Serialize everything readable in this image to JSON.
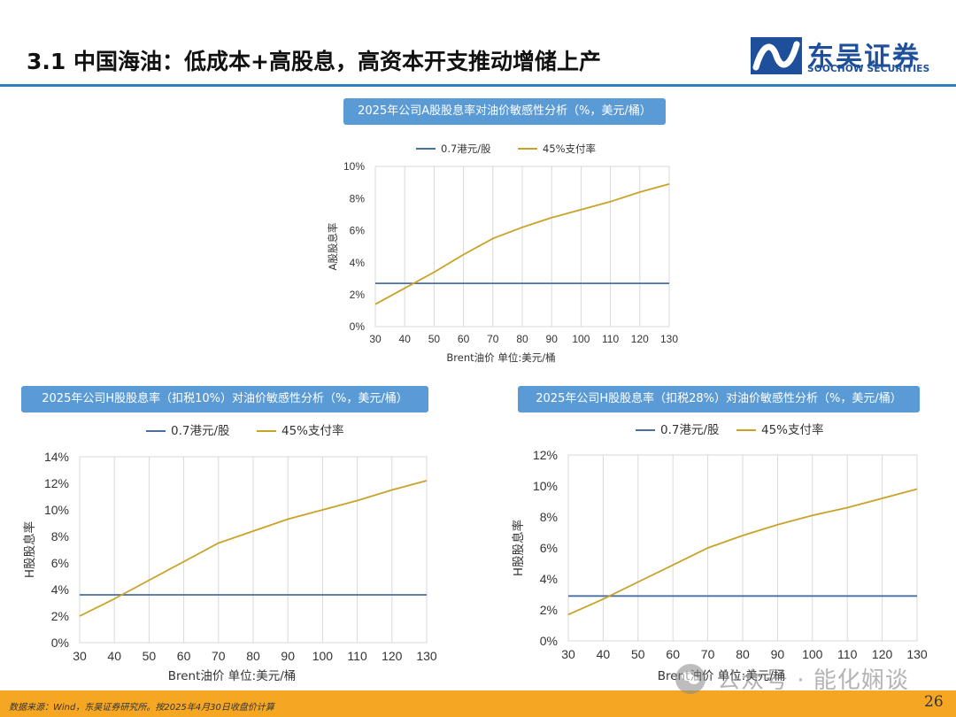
{
  "slide_title": "3.1 中国海油：低成本+高股息，高资本开支推动增储上产",
  "logo": {
    "cn": "东吴证券",
    "en": "SOOCHOW SECURITIES",
    "mark_icon": "soochow-logo-icon"
  },
  "colors": {
    "accent": "#2f7fc1",
    "banner": "#5b9bd5",
    "series_fixed": "#4a6fa5",
    "series_payout": "#c9a227",
    "footer": "#f5a623",
    "brand": "#1d4f9a"
  },
  "chart_data": [
    {
      "type": "line",
      "title": "2025年公司A股股息率对油价敏感性分析（%，美元/桶）",
      "xlabel": "Brent油价  单位:美元/桶",
      "ylabel": "A股股息率",
      "x": [
        30,
        40,
        50,
        60,
        70,
        80,
        90,
        100,
        110,
        120,
        130
      ],
      "x_tick_labels": [
        "30",
        "40",
        "50",
        "60",
        "70",
        "80",
        "90",
        "100",
        "110",
        "120",
        "130"
      ],
      "ylim": [
        0,
        10
      ],
      "y_tick_labels": [
        "0%",
        "2%",
        "4%",
        "6%",
        "8%",
        "10%"
      ],
      "grid": "vertical",
      "legend": "top",
      "series": [
        {
          "name": "0.7港元/股",
          "color": "#4a6fa5",
          "values": [
            2.7,
            2.7,
            2.7,
            2.7,
            2.7,
            2.7,
            2.7,
            2.7,
            2.7,
            2.7,
            2.7
          ]
        },
        {
          "name": "45%支付率",
          "color": "#c9a227",
          "values": [
            1.4,
            2.4,
            3.4,
            4.5,
            5.5,
            6.2,
            6.8,
            7.3,
            7.8,
            8.4,
            8.9
          ]
        }
      ]
    },
    {
      "type": "line",
      "title": "2025年公司H股股息率（扣税10%）对油价敏感性分析（%，美元/桶）",
      "xlabel": "Brent油价  单位:美元/桶",
      "ylabel": "H股股息率",
      "x": [
        30,
        40,
        50,
        60,
        70,
        80,
        90,
        100,
        110,
        120,
        130
      ],
      "x_tick_labels": [
        "30",
        "40",
        "50",
        "60",
        "70",
        "80",
        "90",
        "100",
        "110",
        "120",
        "130"
      ],
      "ylim": [
        0,
        14
      ],
      "y_tick_labels": [
        "0%",
        "2%",
        "4%",
        "6%",
        "8%",
        "10%",
        "12%",
        "14%"
      ],
      "grid": "vertical",
      "legend": "top",
      "series": [
        {
          "name": "0.7港元/股",
          "color": "#4a6fa5",
          "values": [
            3.6,
            3.6,
            3.6,
            3.6,
            3.6,
            3.6,
            3.6,
            3.6,
            3.6,
            3.6,
            3.6
          ]
        },
        {
          "name": "45%支付率",
          "color": "#c9a227",
          "values": [
            2.0,
            3.3,
            4.7,
            6.1,
            7.5,
            8.4,
            9.3,
            10.0,
            10.7,
            11.5,
            12.2
          ]
        }
      ]
    },
    {
      "type": "line",
      "title": "2025年公司H股股息率（扣税28%）对油价敏感性分析（%，美元/桶）",
      "xlabel": "Brent油价  单位:美元/桶",
      "ylabel": "H股股息率",
      "x": [
        30,
        40,
        50,
        60,
        70,
        80,
        90,
        100,
        110,
        120,
        130
      ],
      "x_tick_labels": [
        "30",
        "40",
        "50",
        "60",
        "70",
        "80",
        "90",
        "100",
        "110",
        "120",
        "130"
      ],
      "ylim": [
        0,
        12
      ],
      "y_tick_labels": [
        "0%",
        "2%",
        "4%",
        "6%",
        "8%",
        "10%",
        "12%"
      ],
      "grid": "vertical",
      "legend": "top",
      "series": [
        {
          "name": "0.7港元/股",
          "color": "#4a6fa5",
          "values": [
            2.9,
            2.9,
            2.9,
            2.9,
            2.9,
            2.9,
            2.9,
            2.9,
            2.9,
            2.9,
            2.9
          ]
        },
        {
          "name": "45%支付率",
          "color": "#c9a227",
          "values": [
            1.7,
            2.7,
            3.8,
            4.9,
            6.0,
            6.8,
            7.5,
            8.1,
            8.6,
            9.2,
            9.8
          ]
        }
      ]
    }
  ],
  "footer": {
    "source": "数据来源：Wind，东吴证券研究所。按2025年4月30日收盘价计算",
    "page_number": "26"
  },
  "watermark": {
    "text": "公众号 · 能化娴谈",
    "icon": "wechat-icon"
  }
}
